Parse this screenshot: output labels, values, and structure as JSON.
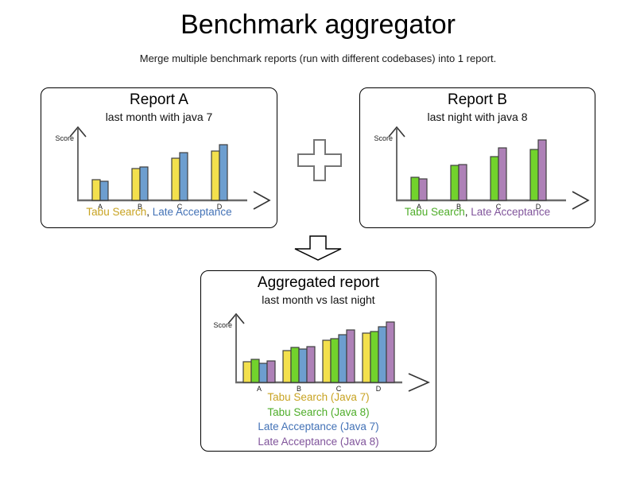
{
  "page": {
    "title": "Benchmark aggregator",
    "subtitle": "Merge multiple benchmark reports (run with different codebases) into 1 report."
  },
  "icons": {
    "plus_icon": "plus operator between Report A and Report B",
    "down_arrow_icon": "arrow pointing down to the aggregated report"
  },
  "colors": {
    "tabu_java7_fill": "#F3E04D",
    "tabu_java8_fill": "#72D32C",
    "late_java7_fill": "#6D9ECF",
    "late_java8_fill": "#AE81B7",
    "tabu_java7_text": "#C8A322",
    "tabu_java8_text": "#4EAD29",
    "late_java7_text": "#4372B6",
    "late_java8_text": "#80549B",
    "axis_line": "#6B6B6B",
    "axis_arrow": "#333333",
    "bar_stroke": "#3F3F3F",
    "panel_border": "#000000"
  },
  "chart_data": [
    {
      "type": "bar",
      "title": "Report A",
      "subtitle": "last month with java 7",
      "ylabel": "Score",
      "xlabel": "",
      "categories": [
        "A",
        "B",
        "C",
        "D"
      ],
      "ylim": [
        0,
        85
      ],
      "legend_layout": "inline",
      "legend_separator": ", ",
      "series": [
        {
          "name": "Tabu Search",
          "values": [
            26,
            40,
            53,
            62
          ],
          "fill": "#F3E04D",
          "text_color": "#C8A322"
        },
        {
          "name": "Late Acceptance",
          "values": [
            24,
            42,
            60,
            70
          ],
          "fill": "#6D9ECF",
          "text_color": "#4372B6"
        }
      ]
    },
    {
      "type": "bar",
      "title": "Report B",
      "subtitle": "last night with java 8",
      "ylabel": "Score",
      "xlabel": "",
      "categories": [
        "A",
        "B",
        "C",
        "D"
      ],
      "ylim": [
        0,
        85
      ],
      "legend_layout": "inline",
      "legend_separator": ", ",
      "series": [
        {
          "name": "Tabu Search",
          "values": [
            29,
            44,
            55,
            64
          ],
          "fill": "#72D32C",
          "text_color": "#4EAD29"
        },
        {
          "name": "Late Acceptance",
          "values": [
            27,
            45,
            66,
            76
          ],
          "fill": "#AE81B7",
          "text_color": "#80549B"
        }
      ]
    },
    {
      "type": "bar",
      "title": "Aggregated report",
      "subtitle": "last month vs last night",
      "ylabel": "Score",
      "xlabel": "",
      "categories": [
        "A",
        "B",
        "C",
        "D"
      ],
      "ylim": [
        0,
        85
      ],
      "legend_layout": "stacked",
      "series": [
        {
          "name": "Tabu Search (Java 7)",
          "values": [
            26,
            40,
            53,
            62
          ],
          "fill": "#F3E04D",
          "text_color": "#C8A322"
        },
        {
          "name": "Tabu Search (Java 8)",
          "values": [
            29,
            44,
            55,
            64
          ],
          "fill": "#72D32C",
          "text_color": "#4EAD29"
        },
        {
          "name": "Late Acceptance (Java 7)",
          "values": [
            24,
            42,
            60,
            70
          ],
          "fill": "#6D9ECF",
          "text_color": "#4372B6"
        },
        {
          "name": "Late Acceptance (Java 8)",
          "values": [
            27,
            45,
            66,
            76
          ],
          "fill": "#AE81B7",
          "text_color": "#80549B"
        }
      ]
    }
  ]
}
